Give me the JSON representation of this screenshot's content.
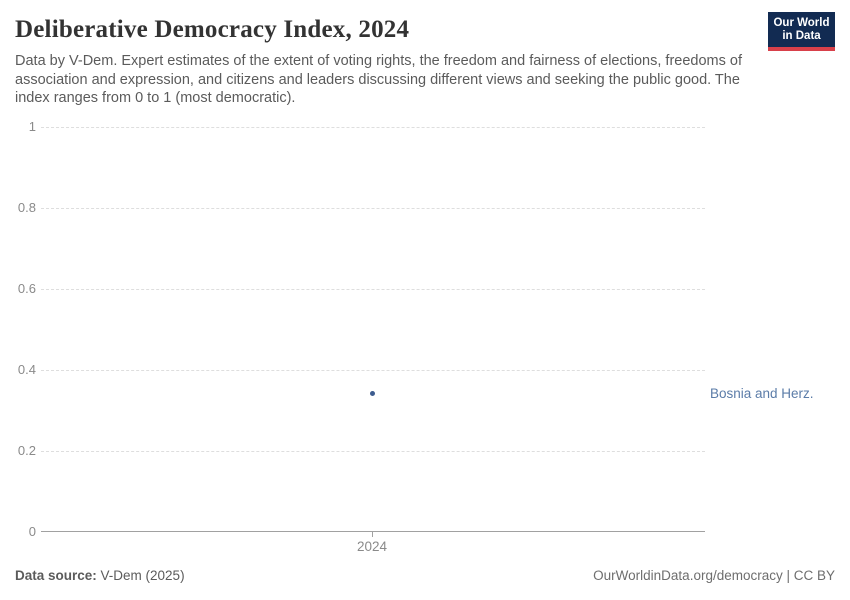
{
  "header": {
    "title": "Deliberative Democracy Index, 2024",
    "subtitle": "Data by V-Dem. Expert estimates of the extent of voting rights, the freedom and fairness of elections, freedoms of association and expression, and citizens and leaders discussing different views and seeking the public good. The index ranges from 0 to 1 (most democratic).",
    "logo": {
      "line1": "Our World",
      "line2": "in Data"
    }
  },
  "chart_data": {
    "type": "scatter",
    "title": "Deliberative Democracy Index, 2024",
    "categories": [
      "2024"
    ],
    "series": [
      {
        "name": "Bosnia and Herz.",
        "values": [
          0.34
        ]
      }
    ],
    "xlabel": "",
    "ylabel": "",
    "ylim": [
      0,
      1
    ],
    "yticks": [
      0,
      0.2,
      0.4,
      0.6,
      0.8,
      1
    ],
    "xticks": [
      "2024"
    ],
    "grid": true,
    "legend_position": "label-right-of-plot"
  },
  "axis": {
    "ytick_labels": [
      "1",
      "0.8",
      "0.6",
      "0.4",
      "0.2",
      "0"
    ],
    "xtick_label": "2024"
  },
  "point_label": "Bosnia and Herz.",
  "footer": {
    "source_label": "Data source:",
    "source_value": " V-Dem (2025)",
    "credit": "OurWorldinData.org/democracy | CC BY"
  },
  "colors": {
    "point": "#3d5c8f",
    "entity_label": "#5b7ca8",
    "logo_bg": "#122b52",
    "logo_accent": "#d8404a",
    "gridline": "#dedede",
    "axis_text": "#8a8a8a"
  }
}
